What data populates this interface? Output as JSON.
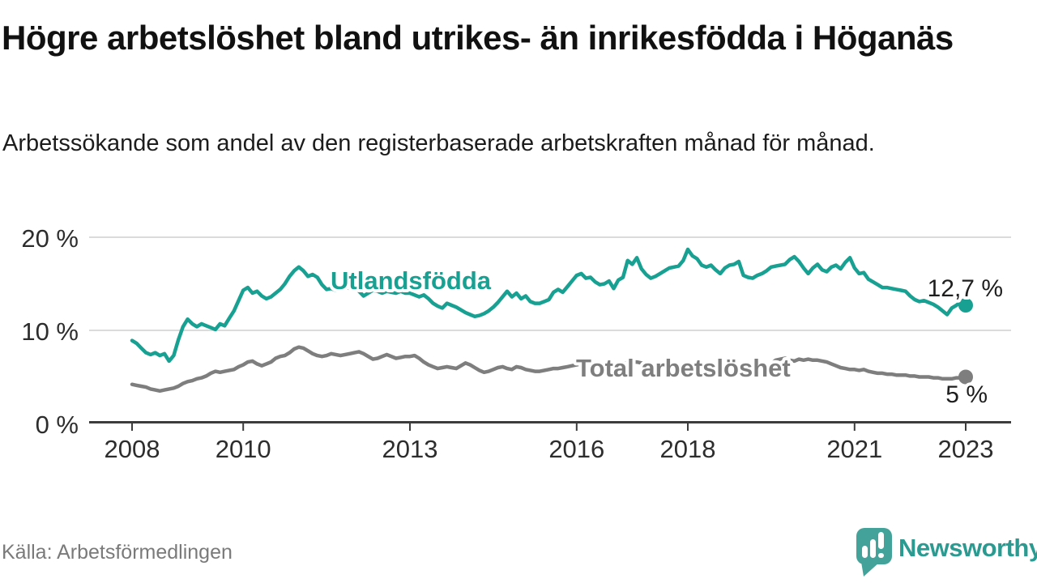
{
  "title": "Högre arbetslöshet bland utrikes- än inrikesfödda i Höganäs",
  "subtitle": "Arbetssökande som andel av den registerbaserade arbetskraften månad för månad.",
  "source": "Källa: Arbetsförmedlingen",
  "branding": {
    "name": "Newsworthy",
    "logo_icon": "speech-bubble-bar-chart-icon"
  },
  "colors": {
    "accent_teal": "#18A192",
    "series_gray": "#7E7E7E",
    "title_text": "#111111",
    "body_text": "#1C1C1C",
    "muted_text": "#7A7A7A",
    "axis_text": "#2D2D2D",
    "axis_line": "#3C3C3C",
    "gridline": "#DBDBDB",
    "logo_teal": "#43A39A",
    "background": "#FFFFFF"
  },
  "chart_data": {
    "type": "line",
    "unit": "%",
    "frequency": "monthly",
    "x_start": "2008-01",
    "x_end": "2023-01",
    "grid": true,
    "legend_position": "inline-labels",
    "x_axis": {
      "ticks": [
        2008,
        2010,
        2013,
        2016,
        2018,
        2021,
        2023
      ]
    },
    "y_axis": {
      "range": [
        0,
        21.5
      ],
      "ticks": [
        {
          "value": 0,
          "label": "0 %"
        },
        {
          "value": 10,
          "label": "10 %"
        },
        {
          "value": 20,
          "label": "20 %"
        }
      ]
    },
    "series": [
      {
        "id": "utlandsfodda",
        "name": "Utlandsfödda",
        "color": "#18A192",
        "end_label": "12,7 %",
        "end_value": 12.7,
        "values": [
          8.9,
          8.6,
          8.1,
          7.6,
          7.4,
          7.6,
          7.3,
          7.5,
          6.7,
          7.3,
          9.0,
          10.4,
          11.2,
          10.7,
          10.4,
          10.7,
          10.5,
          10.3,
          10.1,
          10.7,
          10.5,
          11.3,
          12.1,
          13.2,
          14.3,
          14.6,
          14.0,
          14.2,
          13.7,
          13.4,
          13.6,
          14.0,
          14.4,
          15.0,
          15.8,
          16.4,
          16.8,
          16.4,
          15.8,
          16.0,
          15.7,
          14.9,
          14.4,
          14.5,
          14.3,
          14.5,
          14.7,
          14.5,
          14.7,
          14.2,
          13.7,
          14.0,
          14.3,
          14.2,
          14.0,
          14.2,
          14.1,
          14.0,
          14.2,
          14.0,
          14.0,
          13.8,
          13.6,
          13.8,
          13.4,
          12.9,
          12.6,
          12.4,
          12.9,
          12.7,
          12.5,
          12.2,
          11.9,
          11.7,
          11.5,
          11.6,
          11.8,
          12.1,
          12.5,
          13.0,
          13.6,
          14.2,
          13.6,
          14.0,
          13.4,
          13.7,
          13.1,
          12.9,
          12.9,
          13.1,
          13.3,
          14.1,
          14.4,
          14.1,
          14.7,
          15.3,
          15.9,
          16.1,
          15.6,
          15.7,
          15.2,
          14.9,
          15.0,
          15.3,
          14.5,
          15.4,
          15.7,
          17.5,
          17.1,
          17.8,
          16.6,
          16.0,
          15.6,
          15.8,
          16.1,
          16.4,
          16.7,
          16.8,
          16.9,
          17.5,
          18.7,
          18.0,
          17.7,
          17.0,
          16.8,
          17.0,
          16.5,
          16.1,
          16.7,
          17.0,
          17.1,
          17.4,
          15.9,
          15.7,
          15.6,
          15.9,
          16.1,
          16.4,
          16.8,
          16.9,
          17.0,
          17.1,
          17.6,
          17.9,
          17.4,
          16.7,
          16.1,
          16.7,
          17.1,
          16.5,
          16.3,
          16.8,
          17.0,
          16.6,
          17.3,
          17.8,
          16.7,
          16.1,
          16.2,
          15.5,
          15.2,
          14.9,
          14.6,
          14.6,
          14.5,
          14.4,
          14.3,
          14.2,
          13.7,
          13.3,
          13.1,
          13.2,
          13.0,
          12.8,
          12.5,
          12.1,
          11.7,
          12.4,
          12.7,
          13.1,
          12.7
        ]
      },
      {
        "id": "total-arbetsloshet",
        "name": "Total arbetslöshet",
        "color": "#7E7E7E",
        "end_label": "5 %",
        "end_value": 5.0,
        "values": [
          4.2,
          4.1,
          4.0,
          3.9,
          3.7,
          3.6,
          3.5,
          3.6,
          3.7,
          3.8,
          4.0,
          4.3,
          4.5,
          4.6,
          4.8,
          4.9,
          5.1,
          5.4,
          5.6,
          5.5,
          5.6,
          5.7,
          5.8,
          6.1,
          6.3,
          6.6,
          6.7,
          6.4,
          6.2,
          6.4,
          6.6,
          7.0,
          7.2,
          7.3,
          7.6,
          8.0,
          8.2,
          8.1,
          7.8,
          7.5,
          7.3,
          7.2,
          7.3,
          7.5,
          7.4,
          7.3,
          7.4,
          7.5,
          7.6,
          7.7,
          7.5,
          7.2,
          6.9,
          7.0,
          7.2,
          7.4,
          7.2,
          7.0,
          7.1,
          7.2,
          7.2,
          7.3,
          7.0,
          6.6,
          6.3,
          6.1,
          5.9,
          6.0,
          6.1,
          6.0,
          5.9,
          6.2,
          6.5,
          6.3,
          6.0,
          5.7,
          5.5,
          5.6,
          5.8,
          6.0,
          6.1,
          5.9,
          5.8,
          6.1,
          6.0,
          5.8,
          5.7,
          5.6,
          5.6,
          5.7,
          5.8,
          5.9,
          5.9,
          6.0,
          6.1,
          6.2,
          6.3,
          6.4,
          6.4,
          6.3,
          6.2,
          6.3,
          6.4,
          6.5,
          6.4,
          6.4,
          6.5,
          6.5,
          6.6,
          6.6,
          6.5,
          6.4,
          6.3,
          6.3,
          6.4,
          6.4,
          6.3,
          6.2,
          6.2,
          6.2,
          6.2,
          6.1,
          6.0,
          5.9,
          5.8,
          5.8,
          5.9,
          5.9,
          5.8,
          5.7,
          5.7,
          5.8,
          5.8,
          5.7,
          5.8,
          5.8,
          5.9,
          6.1,
          6.4,
          6.8,
          6.9,
          7.0,
          6.8,
          6.7,
          6.9,
          6.8,
          6.9,
          6.8,
          6.8,
          6.7,
          6.6,
          6.4,
          6.2,
          6.0,
          5.9,
          5.8,
          5.8,
          5.7,
          5.8,
          5.6,
          5.5,
          5.4,
          5.4,
          5.3,
          5.3,
          5.2,
          5.2,
          5.2,
          5.1,
          5.1,
          5.0,
          5.0,
          5.0,
          4.9,
          4.9,
          4.8,
          4.8,
          4.8,
          4.9,
          4.9,
          5.0
        ]
      }
    ]
  }
}
